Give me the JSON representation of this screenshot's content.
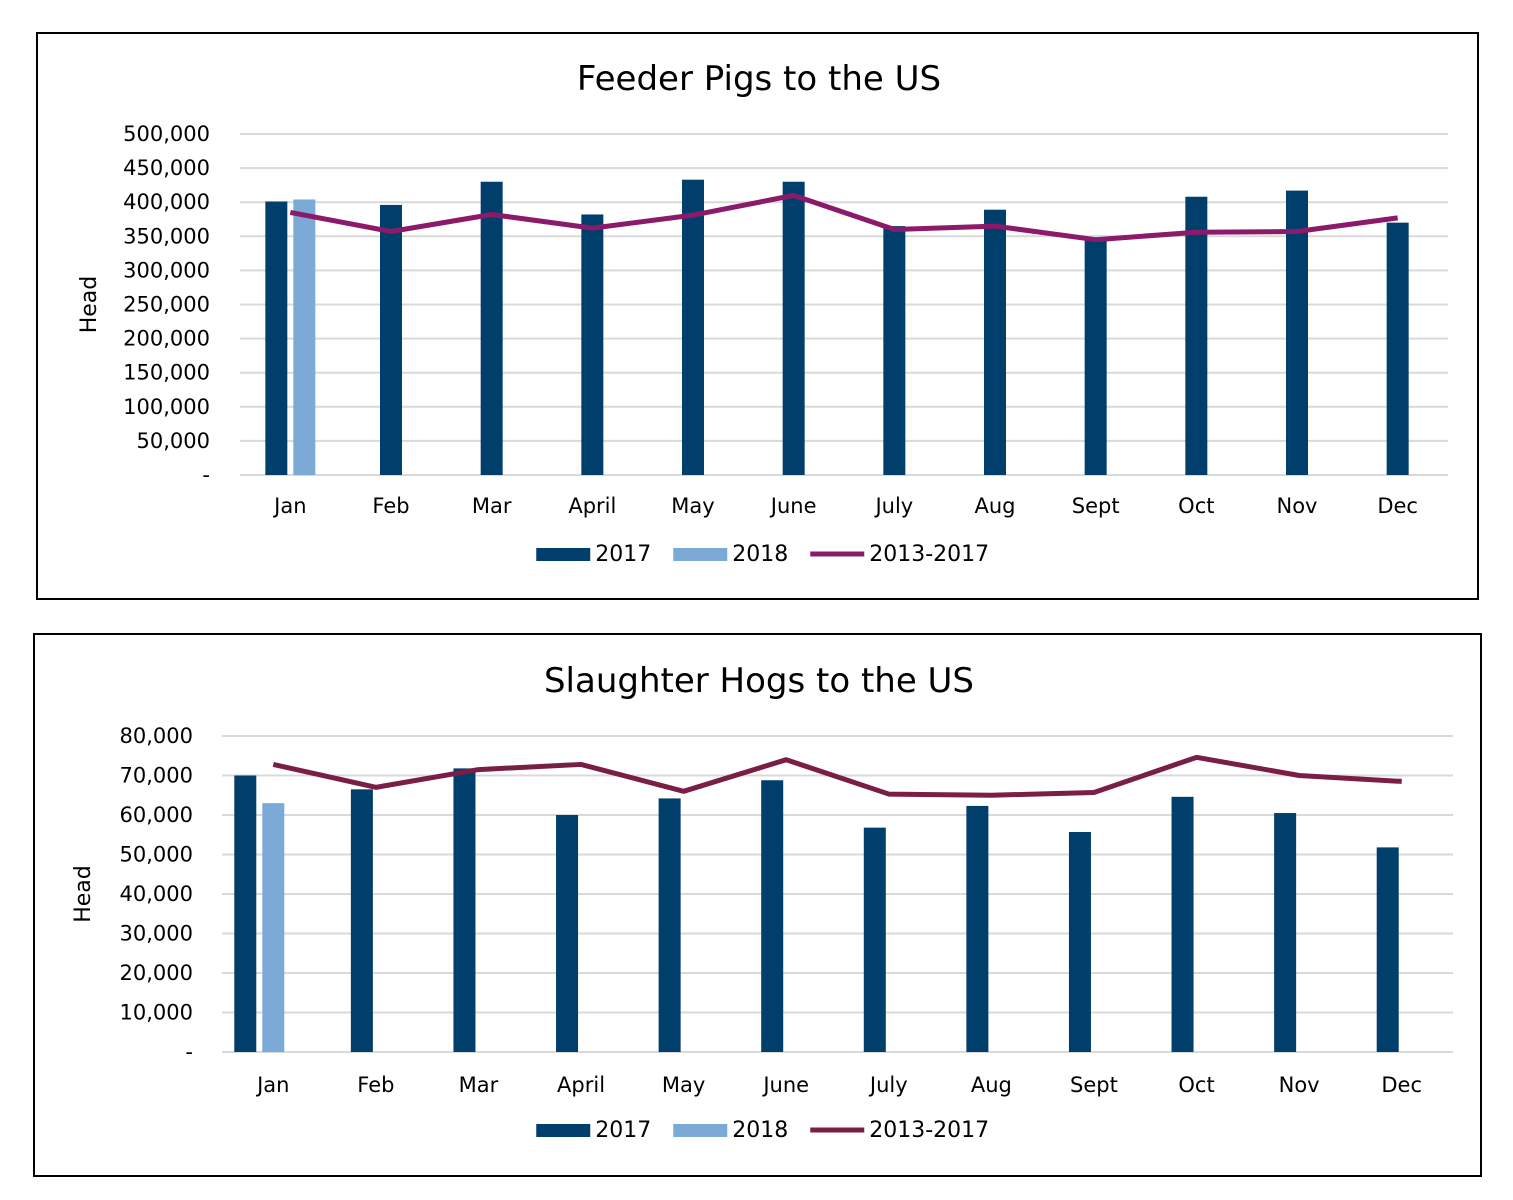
{
  "chart_data": [
    {
      "type": "bar",
      "title": "Feeder Pigs to the US",
      "ylabel": "Head",
      "xlabel": "",
      "categories": [
        "Jan",
        "Feb",
        "Mar",
        "April",
        "May",
        "June",
        "July",
        "Aug",
        "Sept",
        "Oct",
        "Nov",
        "Dec"
      ],
      "ylim": [
        0,
        500000
      ],
      "yticks": [
        0,
        50000,
        100000,
        150000,
        200000,
        250000,
        300000,
        350000,
        400000,
        450000,
        500000
      ],
      "ytick_labels": [
        "-",
        "50,000",
        "100,000",
        "150,000",
        "200,000",
        "250,000",
        "300,000",
        "350,000",
        "400,000",
        "450,000",
        "500,000"
      ],
      "grid": true,
      "legend_position": "bottom",
      "series": [
        {
          "name": "2017",
          "type": "bar",
          "color": "#003F6B",
          "values": [
            401000,
            396000,
            430000,
            382000,
            433000,
            430000,
            365000,
            389000,
            347000,
            408000,
            417000,
            370000
          ]
        },
        {
          "name": "2018",
          "type": "bar",
          "color": "#7BAAD6",
          "values": [
            404000,
            null,
            null,
            null,
            null,
            null,
            null,
            null,
            null,
            null,
            null,
            null
          ]
        },
        {
          "name": "2013-2017",
          "type": "line",
          "color": "#8B1A6B",
          "values": [
            385000,
            357000,
            382000,
            362000,
            381000,
            410000,
            360000,
            365000,
            345000,
            356000,
            357000,
            377000
          ]
        }
      ]
    },
    {
      "type": "bar",
      "title": "Slaughter Hogs to the US",
      "ylabel": "Head",
      "xlabel": "",
      "categories": [
        "Jan",
        "Feb",
        "Mar",
        "April",
        "May",
        "June",
        "July",
        "Aug",
        "Sept",
        "Oct",
        "Nov",
        "Dec"
      ],
      "ylim": [
        0,
        80000
      ],
      "yticks": [
        0,
        10000,
        20000,
        30000,
        40000,
        50000,
        60000,
        70000,
        80000
      ],
      "ytick_labels": [
        "-",
        "10,000",
        "20,000",
        "30,000",
        "40,000",
        "50,000",
        "60,000",
        "70,000",
        "80,000"
      ],
      "grid": true,
      "legend_position": "bottom",
      "series": [
        {
          "name": "2017",
          "type": "bar",
          "color": "#003F6B",
          "values": [
            70000,
            66500,
            71800,
            60000,
            64200,
            68800,
            56800,
            62300,
            55700,
            64600,
            60500,
            51800
          ]
        },
        {
          "name": "2018",
          "type": "bar",
          "color": "#7BAAD6",
          "values": [
            63000,
            null,
            null,
            null,
            null,
            null,
            null,
            null,
            null,
            null,
            null,
            null
          ]
        },
        {
          "name": "2013-2017",
          "type": "line",
          "color": "#7A1E45",
          "values": [
            72800,
            67000,
            71500,
            72800,
            66000,
            74000,
            65300,
            65000,
            65700,
            74600,
            70000,
            68500
          ]
        }
      ]
    }
  ]
}
